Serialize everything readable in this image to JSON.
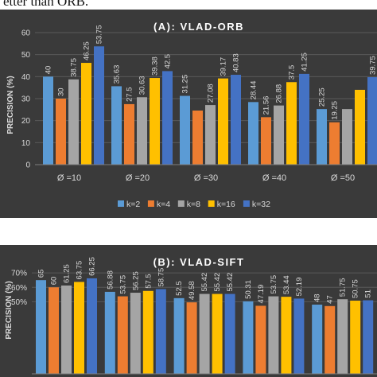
{
  "caption": "etter than ORB.",
  "colors": [
    "#5b9bd5",
    "#ed7d31",
    "#a5a5a5",
    "#ffc000",
    "#4472c4"
  ],
  "chart_data": [
    {
      "type": "bar",
      "title": "(A): VLAD-ORB",
      "ylabel": "PRECISION (%)",
      "xlabel": "",
      "ylim": [
        0,
        60
      ],
      "yticks": [
        "0",
        "10",
        "20",
        "30",
        "40",
        "50",
        "60"
      ],
      "grid": true,
      "legend": "bottom",
      "categories": [
        "Ø =10",
        "Ø =20",
        "Ø =30",
        "Ø =40",
        "Ø =50"
      ],
      "series": [
        {
          "name": "k=2",
          "values": [
            40,
            35.63,
            31.25,
            28.44,
            25.25
          ],
          "labels": [
            "40",
            "35.63",
            "31.25",
            "28.44",
            "25.25"
          ]
        },
        {
          "name": "k=4",
          "values": [
            30,
            27.5,
            24.58,
            21.56,
            19.25
          ],
          "labels": [
            "30",
            "27.5",
            "",
            "21.56",
            "19.25"
          ]
        },
        {
          "name": "k=8",
          "values": [
            38.75,
            30.63,
            27.08,
            26.88,
            25.25
          ],
          "labels": [
            "38.75",
            "30.63",
            "27.08",
            "26.88",
            ""
          ]
        },
        {
          "name": "k=16",
          "values": [
            46.25,
            39.38,
            39.17,
            37.5,
            34.0
          ],
          "labels": [
            "46.25",
            "39.38",
            "39.17",
            "37.5",
            ""
          ]
        },
        {
          "name": "k=32",
          "values": [
            53.75,
            42.5,
            40.83,
            41.25,
            39.75
          ],
          "labels": [
            "53.75",
            "42.5",
            "40.83",
            "41.25",
            "39.75"
          ]
        }
      ]
    },
    {
      "type": "bar",
      "title": "(B): VLAD-SIFT",
      "ylabel": "PRECISION (%)",
      "xlabel": "",
      "ylim": [
        0,
        80
      ],
      "yticks": [
        "50%",
        "60%",
        "70%"
      ],
      "grid": true,
      "categories": [
        "",
        "",
        "",
        "",
        ""
      ],
      "series": [
        {
          "name": "k=2",
          "values": [
            65,
            56.88,
            52.5,
            50.31,
            48
          ],
          "labels": [
            "65",
            "56.88",
            "52.5",
            "50.31",
            "48"
          ]
        },
        {
          "name": "k=4",
          "values": [
            60,
            53.75,
            49.58,
            47.19,
            47
          ],
          "labels": [
            "60",
            "53.75",
            "49.58",
            "47.19",
            "47"
          ]
        },
        {
          "name": "k=8",
          "values": [
            61.25,
            56.25,
            55.42,
            53.75,
            51.75
          ],
          "labels": [
            "61.25",
            "56.25",
            "55.42",
            "53.75",
            "51.75"
          ]
        },
        {
          "name": "k=16",
          "values": [
            63.75,
            57.5,
            55.42,
            53.44,
            50.75
          ],
          "labels": [
            "63.75",
            "57.5",
            "55.42",
            "53.44",
            "50.75"
          ]
        },
        {
          "name": "k=32",
          "values": [
            66.25,
            58.75,
            55.42,
            52.19,
            51
          ],
          "labels": [
            "66.25",
            "58.75",
            "55.42",
            "52.19",
            "51"
          ]
        }
      ]
    }
  ]
}
